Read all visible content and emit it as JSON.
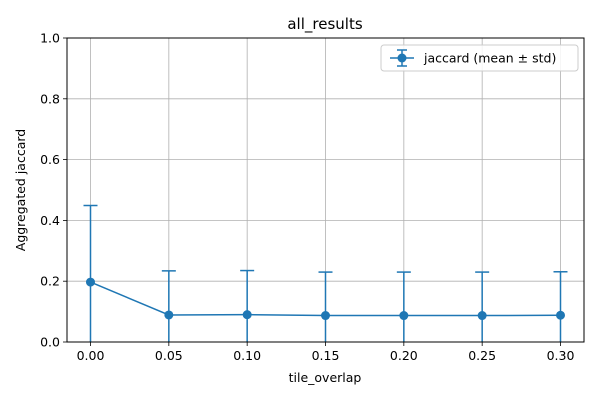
{
  "chart_data": {
    "type": "line",
    "title": "all_results",
    "xlabel": "tile_overlap",
    "ylabel": "Aggregated jaccard",
    "x": [
      0.0,
      0.05,
      0.1,
      0.15,
      0.2,
      0.25,
      0.3
    ],
    "x_tick_labels": [
      "0.00",
      "0.05",
      "0.10",
      "0.15",
      "0.20",
      "0.25",
      "0.30"
    ],
    "y_ticks": [
      0.0,
      0.2,
      0.4,
      0.6,
      0.8,
      1.0
    ],
    "y_tick_labels": [
      "0.0",
      "0.2",
      "0.4",
      "0.6",
      "0.8",
      "1.0"
    ],
    "xlim": [
      -0.015,
      0.315
    ],
    "ylim": [
      0,
      1
    ],
    "grid": true,
    "legend_position": "top-right",
    "series": [
      {
        "name": "jaccard (mean ± std)",
        "color": "#1f77b4",
        "marker": "circle",
        "values": [
          0.197,
          0.089,
          0.09,
          0.087,
          0.087,
          0.087,
          0.088
        ],
        "std": [
          0.252,
          0.145,
          0.145,
          0.143,
          0.143,
          0.143,
          0.143
        ]
      }
    ]
  }
}
